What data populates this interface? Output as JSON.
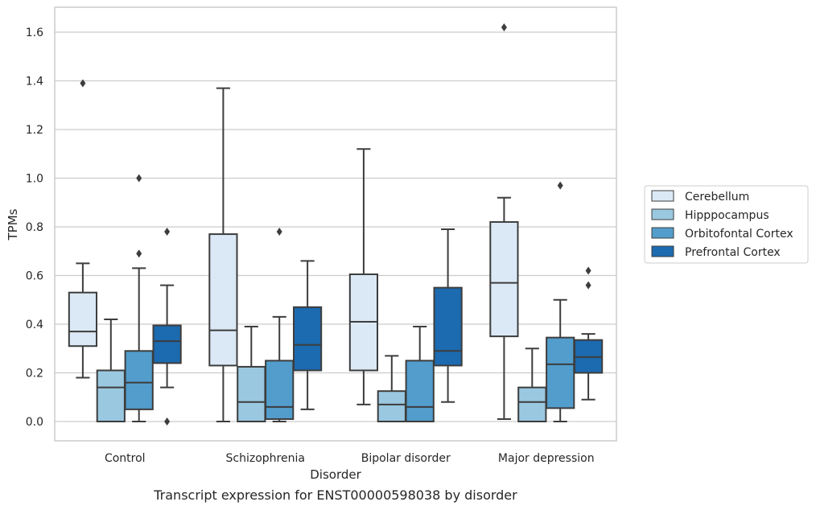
{
  "caption": "Transcript expression for ENST00000598038 by disorder",
  "chart_data": {
    "type": "box",
    "title": "",
    "xlabel": "Disorder",
    "ylabel": "TPMs",
    "ylim": [
      -0.08,
      1.7
    ],
    "yticks": [
      0.0,
      0.2,
      0.4,
      0.6,
      0.8,
      1.0,
      1.2,
      1.4,
      1.6
    ],
    "ytick_labels": [
      "0.0",
      "0.2",
      "0.4",
      "0.6",
      "0.8",
      "1.0",
      "1.2",
      "1.4",
      "1.6"
    ],
    "grid": "horizontal",
    "legend_position": "right",
    "categories": [
      "Control",
      "Schizophrenia",
      "Bipolar disorder",
      "Major depression"
    ],
    "series": [
      {
        "name": "Cerebellum",
        "color": "#dbe9f6",
        "boxes": [
          {
            "q1": 0.31,
            "median": 0.37,
            "q3": 0.53,
            "whisker_low": 0.18,
            "whisker_high": 0.65,
            "outliers": [
              1.39
            ]
          },
          {
            "q1": 0.23,
            "median": 0.375,
            "q3": 0.77,
            "whisker_low": 0.0,
            "whisker_high": 1.37,
            "outliers": []
          },
          {
            "q1": 0.21,
            "median": 0.41,
            "q3": 0.605,
            "whisker_low": 0.07,
            "whisker_high": 1.12,
            "outliers": []
          },
          {
            "q1": 0.35,
            "median": 0.57,
            "q3": 0.82,
            "whisker_low": 0.01,
            "whisker_high": 0.92,
            "outliers": [
              1.62
            ]
          }
        ]
      },
      {
        "name": "Hipppocampus",
        "color": "#9ac8e0",
        "boxes": [
          {
            "q1": 0.0,
            "median": 0.14,
            "q3": 0.21,
            "whisker_low": 0.0,
            "whisker_high": 0.42,
            "outliers": []
          },
          {
            "q1": 0.0,
            "median": 0.08,
            "q3": 0.225,
            "whisker_low": 0.0,
            "whisker_high": 0.39,
            "outliers": []
          },
          {
            "q1": 0.0,
            "median": 0.07,
            "q3": 0.125,
            "whisker_low": 0.0,
            "whisker_high": 0.27,
            "outliers": []
          },
          {
            "q1": 0.0,
            "median": 0.08,
            "q3": 0.14,
            "whisker_low": 0.0,
            "whisker_high": 0.3,
            "outliers": []
          }
        ]
      },
      {
        "name": "Orbitofontal Cortex",
        "color": "#529dcc",
        "boxes": [
          {
            "q1": 0.05,
            "median": 0.16,
            "q3": 0.29,
            "whisker_low": 0.0,
            "whisker_high": 0.63,
            "outliers": [
              0.69,
              1.0
            ]
          },
          {
            "q1": 0.01,
            "median": 0.06,
            "q3": 0.25,
            "whisker_low": 0.0,
            "whisker_high": 0.43,
            "outliers": [
              0.78
            ]
          },
          {
            "q1": 0.0,
            "median": 0.06,
            "q3": 0.25,
            "whisker_low": 0.0,
            "whisker_high": 0.39,
            "outliers": []
          },
          {
            "q1": 0.055,
            "median": 0.235,
            "q3": 0.345,
            "whisker_low": 0.0,
            "whisker_high": 0.5,
            "outliers": [
              0.97
            ]
          }
        ]
      },
      {
        "name": "Prefrontal Cortex",
        "color": "#1c6aaf",
        "boxes": [
          {
            "q1": 0.24,
            "median": 0.33,
            "q3": 0.395,
            "whisker_low": 0.14,
            "whisker_high": 0.56,
            "outliers": [
              0.0,
              0.78
            ]
          },
          {
            "q1": 0.21,
            "median": 0.315,
            "q3": 0.47,
            "whisker_low": 0.05,
            "whisker_high": 0.66,
            "outliers": []
          },
          {
            "q1": 0.23,
            "median": 0.29,
            "q3": 0.55,
            "whisker_low": 0.08,
            "whisker_high": 0.79,
            "outliers": []
          },
          {
            "q1": 0.2,
            "median": 0.265,
            "q3": 0.335,
            "whisker_low": 0.09,
            "whisker_high": 0.36,
            "outliers": [
              0.56,
              0.62
            ]
          }
        ]
      }
    ]
  }
}
